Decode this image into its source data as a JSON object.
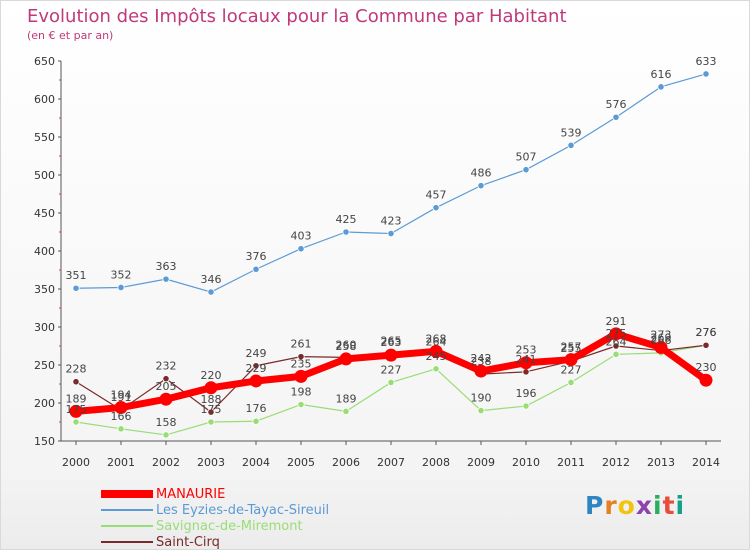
{
  "header": {
    "title": "Evolution des Impôts locaux pour la Commune par Habitant",
    "subtitle": "(en € et par an)"
  },
  "logo": {
    "text": "Proxiti",
    "letters": [
      "P",
      "r",
      "o",
      "x",
      "i",
      "t",
      "i"
    ]
  },
  "chart_data": {
    "type": "line",
    "x": [
      2000,
      2001,
      2002,
      2003,
      2004,
      2005,
      2006,
      2007,
      2008,
      2009,
      2010,
      2011,
      2012,
      2013,
      2014
    ],
    "ylim": [
      150,
      650
    ],
    "yticks": [
      150,
      200,
      250,
      300,
      350,
      400,
      450,
      500,
      550,
      600,
      650
    ],
    "grid": false,
    "legend_position": "bottom-left",
    "series": [
      {
        "name": "MANAURIE",
        "color": "#ff0000",
        "values": [
          189,
          194,
          205,
          220,
          229,
          235,
          258,
          263,
          268,
          242,
          253,
          257,
          291,
          273,
          230
        ]
      },
      {
        "name": "Les Eyzies-de-Tayac-Sireuil",
        "color": "#5b9bd5",
        "values": [
          351,
          352,
          363,
          346,
          376,
          403,
          425,
          423,
          457,
          486,
          507,
          539,
          576,
          616,
          633
        ]
      },
      {
        "name": "Savignac-de-Miremont",
        "color": "#99dd77",
        "values": [
          175,
          166,
          158,
          175,
          176,
          198,
          189,
          227,
          245,
          190,
          196,
          227,
          264,
          266,
          276
        ]
      },
      {
        "name": "Saint-Cirq",
        "color": "#7a2a2a",
        "values": [
          228,
          191,
          232,
          188,
          249,
          261,
          260,
          265,
          264,
          238,
          241,
          255,
          275,
          269,
          276
        ]
      }
    ]
  }
}
